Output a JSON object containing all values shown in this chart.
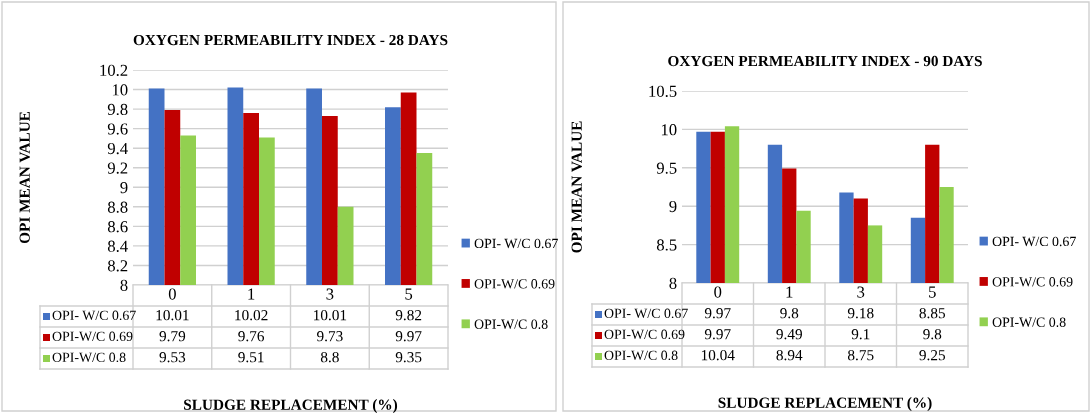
{
  "chart_data": [
    {
      "type": "bar",
      "title": "OXYGEN PERMEABILITY INDEX - 28 DAYS",
      "xlabel": "SLUDGE REPLACEMENT (%)",
      "ylabel": "OPI MEAN VALUE",
      "categories": [
        "0",
        "1",
        "3",
        "5"
      ],
      "series": [
        {
          "name": "OPI- W/C 0.67",
          "color": "#4472c4",
          "values": [
            10.01,
            10.02,
            10.01,
            9.82
          ]
        },
        {
          "name": "OPI-W/C 0.69",
          "color": "#c00000",
          "values": [
            9.79,
            9.76,
            9.73,
            9.97
          ]
        },
        {
          "name": "OPI-W/C 0.8",
          "color": "#92d050",
          "values": [
            9.53,
            9.51,
            8.8,
            9.35
          ]
        }
      ],
      "ylim": [
        8,
        10.2
      ],
      "yticks": [
        8,
        8.2,
        8.4,
        8.6,
        8.8,
        9,
        9.2,
        9.4,
        9.6,
        9.8,
        10,
        10.2
      ],
      "grid": "y",
      "legend": "right",
      "data_labels": true
    },
    {
      "type": "bar",
      "title": "OXYGEN PERMEABILITY INDEX - 90 DAYS",
      "xlabel": "SLUDGE REPLACEMENT (%)",
      "ylabel": "OPI MEAN VALUE",
      "categories": [
        "0",
        "1",
        "3",
        "5"
      ],
      "series": [
        {
          "name": "OPI- W/C 0.67",
          "color": "#4472c4",
          "values": [
            9.97,
            9.8,
            9.18,
            8.85
          ]
        },
        {
          "name": "OPI-W/C 0.69",
          "color": "#c00000",
          "values": [
            9.97,
            9.49,
            9.1,
            9.8
          ]
        },
        {
          "name": "OPI-W/C 0.8",
          "color": "#92d050",
          "values": [
            10.04,
            8.94,
            8.75,
            9.25
          ]
        }
      ],
      "ylim": [
        8,
        10.5
      ],
      "yticks": [
        8,
        8.5,
        9,
        9.5,
        10,
        10.5
      ],
      "grid": "y",
      "legend": "right",
      "data_labels": true
    }
  ]
}
